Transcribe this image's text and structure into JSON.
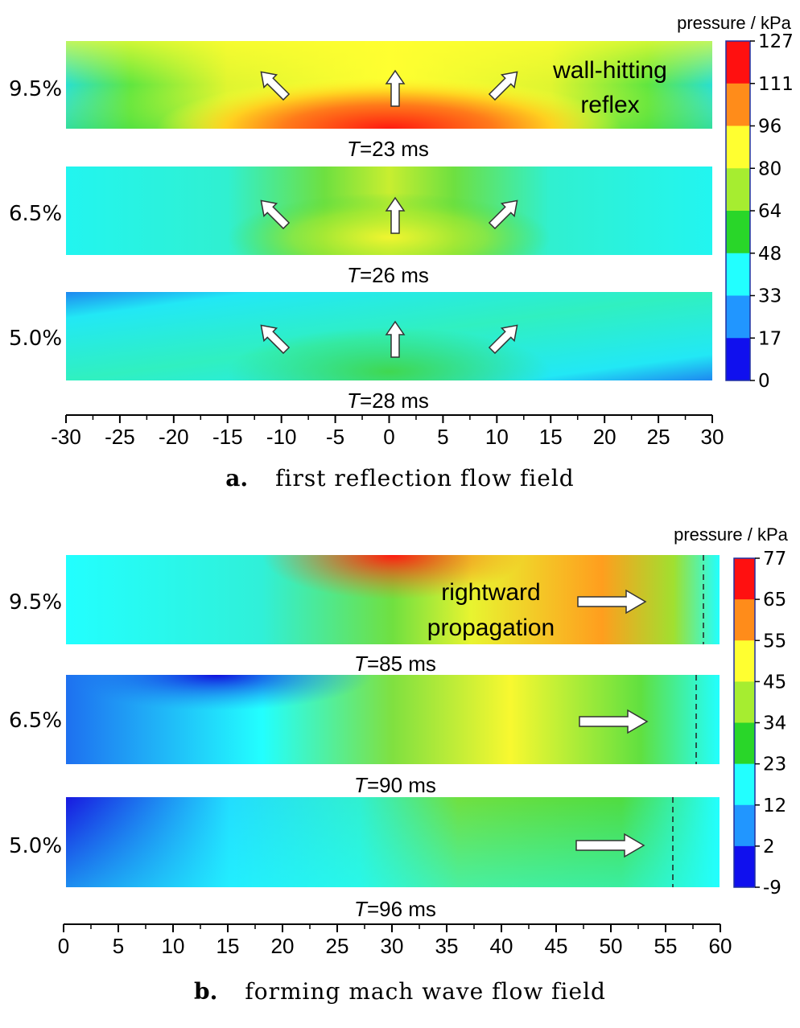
{
  "chart_data": [
    {
      "type": "heatmap",
      "caption_label": "a.",
      "caption_text": "first reflection flow field",
      "colorbar_title": "pressure / kPa",
      "colorbar_ticks": [
        "127",
        "111",
        "96",
        "80",
        "64",
        "48",
        "33",
        "17",
        "0"
      ],
      "colorbar_colors": [
        "#ff1010",
        "#ff8c1a",
        "#ffff30",
        "#a6ed30",
        "#29d629",
        "#22ffff",
        "#2196ff",
        "#1010ee"
      ],
      "x_ticks": [
        "-30",
        "-25",
        "-20",
        "-15",
        "-10",
        "-5",
        "0",
        "5",
        "10",
        "15",
        "20",
        "25",
        "30"
      ],
      "xlim": [
        -30,
        30
      ],
      "annotation": [
        "wall-hitting",
        "reflex"
      ],
      "rows": [
        {
          "label": "9.5%",
          "time_prefix": "T",
          "time_suffix": "=23 ms"
        },
        {
          "label": "6.5%",
          "time_prefix": "T",
          "time_suffix": "=26 ms"
        },
        {
          "label": "5.0%",
          "time_prefix": "T",
          "time_suffix": "=28 ms"
        }
      ]
    },
    {
      "type": "heatmap",
      "caption_label": "b.",
      "caption_text": "forming mach wave flow field",
      "colorbar_title": "pressure / kPa",
      "colorbar_ticks": [
        "77",
        "65",
        "55",
        "45",
        "34",
        "23",
        "12",
        "2",
        "-9"
      ],
      "colorbar_colors": [
        "#ff1010",
        "#ff8c1a",
        "#ffff30",
        "#a6ed30",
        "#29d629",
        "#22ffff",
        "#2196ff",
        "#1010ee"
      ],
      "x_ticks": [
        "0",
        "5",
        "10",
        "15",
        "20",
        "25",
        "30",
        "35",
        "40",
        "45",
        "50",
        "55",
        "60"
      ],
      "xlim": [
        0,
        60
      ],
      "annotation": [
        "rightward",
        "propagation"
      ],
      "rows": [
        {
          "label": "9.5%",
          "time_prefix": "T",
          "time_suffix": "=85 ms"
        },
        {
          "label": "6.5%",
          "time_prefix": "T",
          "time_suffix": "=90 ms"
        },
        {
          "label": "5.0%",
          "time_prefix": "T",
          "time_suffix": "=96 ms"
        }
      ]
    }
  ]
}
